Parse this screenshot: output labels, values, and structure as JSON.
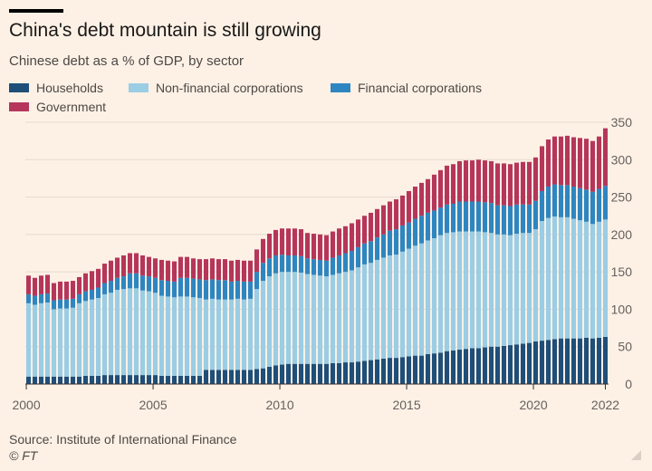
{
  "title": "China's debt mountain is still growing",
  "subtitle": "Chinese debt as a % of GDP, by sector",
  "source": "Source: Institute of International Finance",
  "credit": "© FT",
  "chart_data": {
    "type": "bar",
    "stacked": true,
    "title": "China's debt mountain is still growing",
    "subtitle": "Chinese debt as a % of GDP, by sector",
    "xlabel": "",
    "ylabel": "",
    "ylim": [
      0,
      350
    ],
    "yticks": [
      0,
      50,
      100,
      150,
      200,
      250,
      300,
      350
    ],
    "y_axis_position": "right",
    "grid": true,
    "legend_position": "top",
    "xticks": [
      "2000",
      "2005",
      "2010",
      "2015",
      "2020",
      "2022"
    ],
    "categories": [
      "2000 Q1",
      "2000 Q2",
      "2000 Q3",
      "2000 Q4",
      "2001 Q1",
      "2001 Q2",
      "2001 Q3",
      "2001 Q4",
      "2002 Q1",
      "2002 Q2",
      "2002 Q3",
      "2002 Q4",
      "2003 Q1",
      "2003 Q2",
      "2003 Q3",
      "2003 Q4",
      "2004 Q1",
      "2004 Q2",
      "2004 Q3",
      "2004 Q4",
      "2005 Q1",
      "2005 Q2",
      "2005 Q3",
      "2005 Q4",
      "2006 Q1",
      "2006 Q2",
      "2006 Q3",
      "2006 Q4",
      "2007 Q1",
      "2007 Q2",
      "2007 Q3",
      "2007 Q4",
      "2008 Q1",
      "2008 Q2",
      "2008 Q3",
      "2008 Q4",
      "2009 Q1",
      "2009 Q2",
      "2009 Q3",
      "2009 Q4",
      "2010 Q1",
      "2010 Q2",
      "2010 Q3",
      "2010 Q4",
      "2011 Q1",
      "2011 Q2",
      "2011 Q3",
      "2011 Q4",
      "2012 Q1",
      "2012 Q2",
      "2012 Q3",
      "2012 Q4",
      "2013 Q1",
      "2013 Q2",
      "2013 Q3",
      "2013 Q4",
      "2014 Q1",
      "2014 Q2",
      "2014 Q3",
      "2014 Q4",
      "2015 Q1",
      "2015 Q2",
      "2015 Q3",
      "2015 Q4",
      "2016 Q1",
      "2016 Q2",
      "2016 Q3",
      "2016 Q4",
      "2017 Q1",
      "2017 Q2",
      "2017 Q3",
      "2017 Q4",
      "2018 Q1",
      "2018 Q2",
      "2018 Q3",
      "2018 Q4",
      "2019 Q1",
      "2019 Q2",
      "2019 Q3",
      "2019 Q4",
      "2020 Q1",
      "2020 Q2",
      "2020 Q3",
      "2020 Q4",
      "2021 Q1",
      "2021 Q2",
      "2021 Q3",
      "2021 Q4",
      "2022 Q1",
      "2022 Q2",
      "2022 Q3",
      "2022 Q4"
    ],
    "series": [
      {
        "name": "Households",
        "color": "#1f4e79",
        "values": [
          10,
          10,
          10,
          10,
          10,
          10,
          10,
          10,
          10,
          11,
          11,
          11,
          12,
          12,
          12,
          12,
          12,
          12,
          12,
          12,
          12,
          11,
          11,
          11,
          11,
          11,
          11,
          11,
          19,
          19,
          19,
          19,
          19,
          19,
          19,
          19,
          20,
          21,
          23,
          25,
          26,
          27,
          27,
          27,
          27,
          27,
          27,
          27,
          28,
          28,
          29,
          29,
          30,
          31,
          32,
          33,
          34,
          35,
          35,
          36,
          37,
          38,
          38,
          40,
          41,
          42,
          44,
          45,
          46,
          47,
          48,
          48,
          49,
          50,
          50,
          51,
          52,
          53,
          54,
          55,
          57,
          58,
          59,
          60,
          61,
          61,
          61,
          61,
          62,
          61,
          62,
          63
        ]
      },
      {
        "name": "Non-financial corporations",
        "color": "#9bcde4",
        "values": [
          98,
          96,
          98,
          99,
          90,
          91,
          91,
          92,
          98,
          100,
          102,
          104,
          108,
          110,
          114,
          115,
          116,
          116,
          113,
          112,
          110,
          107,
          106,
          105,
          106,
          106,
          105,
          104,
          94,
          95,
          94,
          94,
          94,
          95,
          94,
          95,
          107,
          117,
          121,
          123,
          124,
          123,
          123,
          122,
          120,
          119,
          118,
          117,
          118,
          120,
          121,
          123,
          126,
          129,
          130,
          133,
          135,
          137,
          138,
          141,
          144,
          147,
          150,
          152,
          154,
          157,
          158,
          158,
          158,
          157,
          156,
          156,
          154,
          152,
          150,
          149,
          147,
          148,
          148,
          147,
          150,
          160,
          163,
          164,
          162,
          162,
          160,
          158,
          155,
          153,
          155,
          157
        ]
      },
      {
        "name": "Financial corporations",
        "color": "#2e86c1",
        "values": [
          12,
          12,
          12,
          12,
          12,
          12,
          12,
          12,
          12,
          13,
          13,
          14,
          15,
          16,
          16,
          17,
          20,
          20,
          20,
          20,
          20,
          21,
          21,
          21,
          25,
          25,
          25,
          25,
          26,
          26,
          26,
          26,
          24,
          24,
          24,
          23,
          23,
          24,
          24,
          24,
          23,
          22,
          22,
          22,
          21,
          21,
          21,
          21,
          23,
          24,
          25,
          26,
          27,
          28,
          29,
          30,
          31,
          33,
          34,
          35,
          35,
          36,
          37,
          37,
          37,
          37,
          38,
          38,
          40,
          40,
          40,
          40,
          40,
          40,
          39,
          39,
          39,
          39,
          38,
          38,
          38,
          40,
          42,
          43,
          43,
          43,
          43,
          43,
          43,
          43,
          44,
          45
        ]
      },
      {
        "name": "Government",
        "color": "#b5365a",
        "values": [
          25,
          24,
          25,
          25,
          23,
          24,
          24,
          24,
          23,
          24,
          25,
          25,
          26,
          27,
          27,
          28,
          27,
          27,
          27,
          26,
          26,
          27,
          27,
          27,
          28,
          28,
          27,
          27,
          28,
          28,
          28,
          28,
          28,
          28,
          28,
          28,
          30,
          32,
          33,
          34,
          35,
          36,
          36,
          36,
          34,
          34,
          34,
          34,
          35,
          36,
          36,
          37,
          37,
          37,
          38,
          38,
          39,
          39,
          40,
          40,
          42,
          43,
          44,
          45,
          48,
          50,
          52,
          53,
          54,
          55,
          55,
          56,
          56,
          56,
          56,
          56,
          56,
          56,
          57,
          57,
          58,
          60,
          63,
          64,
          65,
          66,
          66,
          67,
          68,
          68,
          70,
          77
        ]
      }
    ]
  }
}
